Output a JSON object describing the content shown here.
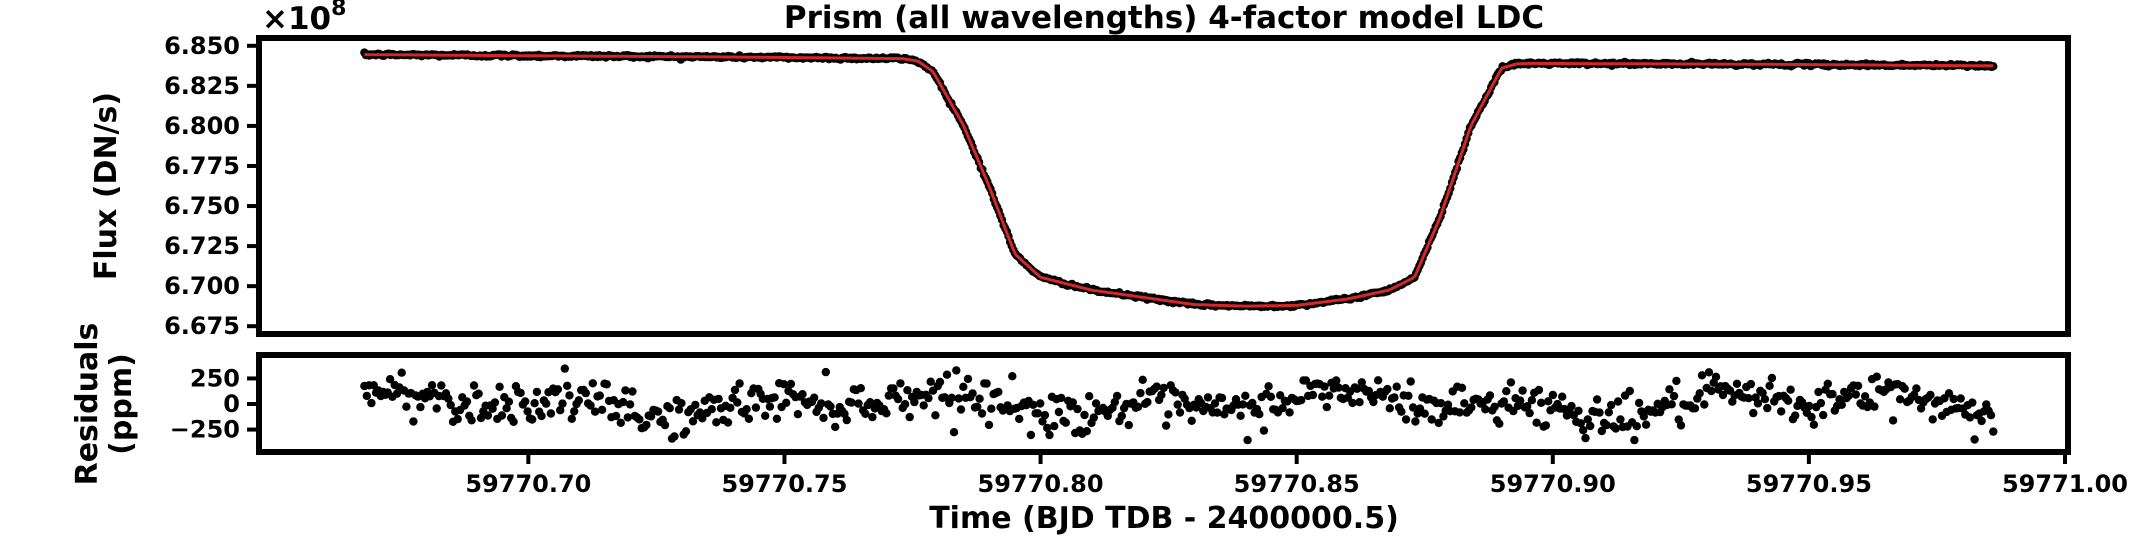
{
  "chart_data": [
    {
      "type": "scatter",
      "title": "Prism (all wavelengths) 4-factor model LDC",
      "offset_base": "×10",
      "offset_exponent": "8",
      "ylabel": "Flux (DN/s)",
      "xlabel": "",
      "xlim": [
        59770.648,
        59771.0
      ],
      "ylim": [
        6.672,
        6.853
      ],
      "yticks": [
        6.675,
        6.7,
        6.725,
        6.75,
        6.775,
        6.8,
        6.825,
        6.85
      ],
      "ytick_labels": [
        "6.675",
        "6.700",
        "6.725",
        "6.750",
        "6.775",
        "6.800",
        "6.825",
        "6.850"
      ],
      "series": [
        {
          "name": "data",
          "color": "#000000",
          "marker": "circle",
          "x_range": [
            59770.668,
            59770.986
          ],
          "n_points": 1000
        },
        {
          "name": "model",
          "color": "#d62728",
          "line": true,
          "x": [
            59770.668,
            59770.7,
            59770.74,
            59770.773,
            59770.776,
            59770.779,
            59770.785,
            59770.79,
            59770.795,
            59770.8,
            59770.81,
            59770.83,
            59770.84,
            59770.85,
            59770.86,
            59770.868,
            59770.873,
            59770.878,
            59770.884,
            59770.89,
            59770.893,
            59770.896,
            59770.94,
            59770.986
          ],
          "y": [
            6.8445,
            6.8438,
            6.843,
            6.842,
            6.8405,
            6.834,
            6.8,
            6.762,
            6.72,
            6.7055,
            6.6975,
            6.6885,
            6.6875,
            6.688,
            6.692,
            6.6975,
            6.7055,
            6.743,
            6.8,
            6.836,
            6.8388,
            6.839,
            6.8385,
            6.8375
          ]
        }
      ]
    },
    {
      "type": "scatter",
      "title": "",
      "ylabel_lines": [
        "Residuals",
        "(ppm)"
      ],
      "xlabel": "Time (BJD TDB - 2400000.5)",
      "xlim": [
        59770.648,
        59771.0
      ],
      "ylim": [
        -440,
        450
      ],
      "yticks": [
        -250,
        0,
        250
      ],
      "ytick_labels": [
        "−250",
        "0",
        "250"
      ],
      "xticks": [
        59770.7,
        59770.75,
        59770.8,
        59770.85,
        59770.9,
        59770.95,
        59771.0
      ],
      "xtick_labels": [
        "59770.70",
        "59770.75",
        "59770.80",
        "59770.85",
        "59770.90",
        "59770.95",
        "59771.00"
      ],
      "series": [
        {
          "name": "residuals",
          "color": "#000000",
          "marker": "circle",
          "x_range": [
            59770.668,
            59770.986
          ],
          "n_points": 700,
          "typical_scatter_ppm": 100,
          "max_abs_ppm": 380
        }
      ]
    }
  ]
}
